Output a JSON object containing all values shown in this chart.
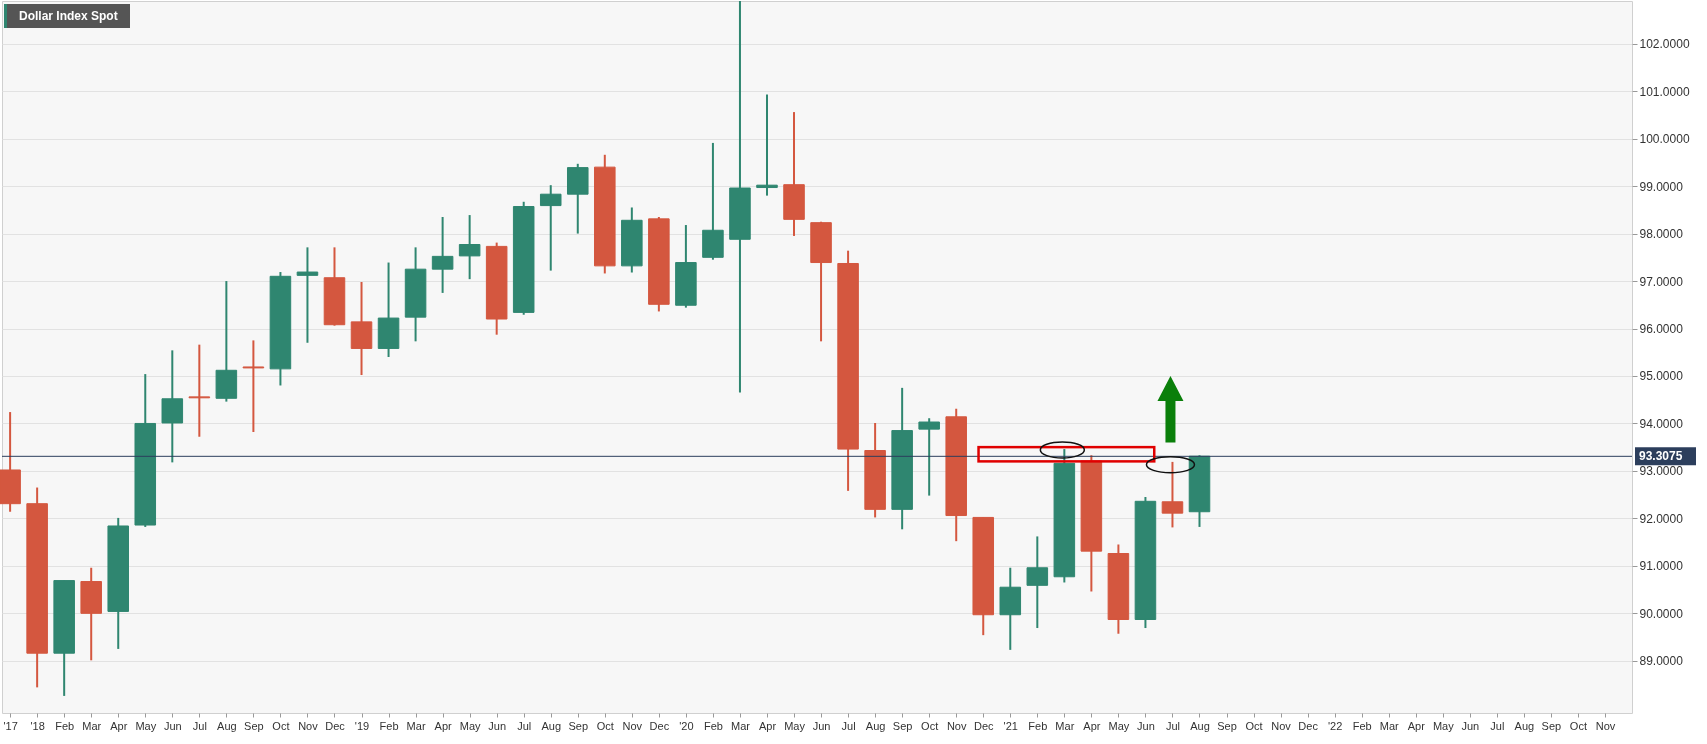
{
  "chart_data": {
    "type": "candlestick",
    "title": "Dollar Index Spot",
    "categories": [
      "'17",
      "'18",
      "Feb",
      "Mar",
      "Apr",
      "May",
      "Jun",
      "Jul",
      "Aug",
      "Sep",
      "Oct",
      "Nov",
      "Dec",
      "'19",
      "Feb",
      "Mar",
      "Apr",
      "May",
      "Jun",
      "Jul",
      "Aug",
      "Sep",
      "Oct",
      "Nov",
      "Dec",
      "'20",
      "Feb",
      "Mar",
      "Apr",
      "May",
      "Jun",
      "Jul",
      "Aug",
      "Sep",
      "Oct",
      "Nov",
      "Dec",
      "'21",
      "Feb",
      "Mar",
      "Apr",
      "May",
      "Jun",
      "Jul",
      "Aug",
      "Sep",
      "Oct",
      "Nov",
      "Dec",
      "'22",
      "Feb",
      "Mar",
      "Apr",
      "May",
      "Jun",
      "Jul",
      "Aug",
      "Sep",
      "Oct",
      "Nov"
    ],
    "ohlc": [
      [
        93.02,
        94.24,
        92.14,
        92.31
      ],
      [
        92.31,
        92.65,
        88.44,
        89.16
      ],
      [
        89.16,
        90.69,
        88.26,
        90.69
      ],
      [
        90.67,
        90.96,
        89.01,
        90.0
      ],
      [
        90.04,
        92.01,
        89.25,
        91.84
      ],
      [
        91.86,
        95.04,
        91.82,
        94.0
      ],
      [
        94.01,
        95.54,
        93.18,
        94.52
      ],
      [
        94.56,
        95.66,
        93.72,
        94.54
      ],
      [
        94.53,
        97.0,
        94.46,
        95.12
      ],
      [
        95.19,
        95.75,
        93.82,
        95.17
      ],
      [
        95.15,
        97.19,
        94.8,
        97.1
      ],
      [
        97.12,
        97.71,
        95.7,
        97.19
      ],
      [
        97.07,
        97.71,
        96.06,
        96.08
      ],
      [
        96.14,
        96.98,
        95.02,
        95.58
      ],
      [
        95.58,
        97.39,
        95.4,
        96.22
      ],
      [
        96.24,
        97.71,
        95.73,
        97.25
      ],
      [
        97.25,
        98.35,
        96.75,
        97.52
      ],
      [
        97.53,
        98.39,
        97.04,
        97.77
      ],
      [
        97.73,
        97.81,
        95.87,
        96.2
      ],
      [
        96.34,
        98.67,
        96.29,
        98.57
      ],
      [
        98.59,
        99.02,
        97.22,
        98.83
      ],
      [
        98.83,
        99.47,
        98.0,
        99.39
      ],
      [
        99.4,
        99.66,
        97.16,
        97.32
      ],
      [
        97.32,
        98.55,
        97.18,
        98.28
      ],
      [
        98.31,
        98.35,
        96.36,
        96.51
      ],
      [
        96.49,
        98.18,
        96.44,
        97.39
      ],
      [
        97.5,
        99.91,
        97.45,
        98.07
      ],
      [
        97.88,
        102.9,
        94.65,
        98.96
      ],
      [
        98.97,
        100.93,
        98.8,
        99.02
      ],
      [
        99.03,
        100.56,
        97.95,
        98.3
      ],
      [
        98.23,
        98.25,
        95.73,
        97.39
      ],
      [
        97.37,
        97.64,
        92.58,
        93.46
      ],
      [
        93.43,
        94.01,
        92.02,
        92.19
      ],
      [
        92.19,
        94.75,
        91.77,
        93.85
      ],
      [
        93.88,
        94.11,
        92.48,
        94.03
      ],
      [
        94.14,
        94.31,
        91.52,
        92.06
      ],
      [
        92.02,
        92.02,
        89.54,
        89.97
      ],
      [
        89.97,
        90.96,
        89.23,
        90.55
      ],
      [
        90.59,
        91.62,
        89.69,
        90.96
      ],
      [
        90.77,
        93.46,
        90.65,
        93.16
      ],
      [
        93.21,
        93.33,
        90.46,
        91.31
      ],
      [
        91.26,
        91.45,
        89.57,
        89.87
      ],
      [
        89.87,
        92.45,
        89.69,
        92.36
      ],
      [
        92.35,
        93.19,
        91.81,
        92.11
      ],
      [
        92.14,
        93.33,
        91.82,
        93.31
      ],
      null,
      null,
      null,
      null,
      null,
      null,
      null,
      null,
      null,
      null,
      null,
      null,
      null,
      null,
      null
    ],
    "colors": [
      "#d4573f",
      "#d4573f",
      "#2f8670",
      "#d4573f",
      "#2f8670",
      "#2f8670",
      "#2f8670",
      "#d4573f",
      "#2f8670",
      "#d4573f",
      "#2f8670",
      "#2f8670",
      "#d4573f",
      "#d4573f",
      "#2f8670",
      "#2f8670",
      "#2f8670",
      "#2f8670",
      "#d4573f",
      "#2f8670",
      "#2f8670",
      "#2f8670",
      "#d4573f",
      "#2f8670",
      "#d4573f",
      "#2f8670",
      "#2f8670",
      "#2f8670",
      "#2f8670",
      "#d4573f",
      "#d4573f",
      "#d4573f",
      "#d4573f",
      "#2f8670",
      "#2f8670",
      "#d4573f",
      "#d4573f",
      "#2f8670",
      "#2f8670",
      "#2f8670",
      "#d4573f",
      "#d4573f",
      "#2f8670",
      "#d4573f",
      "#2f8670",
      null,
      null,
      null,
      null,
      null,
      null,
      null,
      null,
      null,
      null,
      null,
      null,
      null,
      null,
      null
    ],
    "ylim": [
      87.9,
      102.9
    ],
    "yticks": [
      {
        "value": 89,
        "label": "89.0000"
      },
      {
        "value": 90,
        "label": "90.0000"
      },
      {
        "value": 91,
        "label": "91.0000"
      },
      {
        "value": 92,
        "label": "92.0000"
      },
      {
        "value": 93,
        "label": "93.0000"
      },
      {
        "value": 94,
        "label": "94.0000"
      },
      {
        "value": 95,
        "label": "95.0000"
      },
      {
        "value": 96,
        "label": "96.0000"
      },
      {
        "value": 97,
        "label": "97.0000"
      },
      {
        "value": 98,
        "label": "98.0000"
      },
      {
        "value": 99,
        "label": "99.0000"
      },
      {
        "value": 100,
        "label": "100.0000"
      },
      {
        "value": 101,
        "label": "101.0000"
      },
      {
        "value": 102,
        "label": "102.0000"
      }
    ],
    "grid": "y",
    "ref_lines": [
      {
        "axis": "y",
        "value": 93.3075,
        "label": "93.3075",
        "color": "#2c3e5c"
      }
    ]
  }
}
